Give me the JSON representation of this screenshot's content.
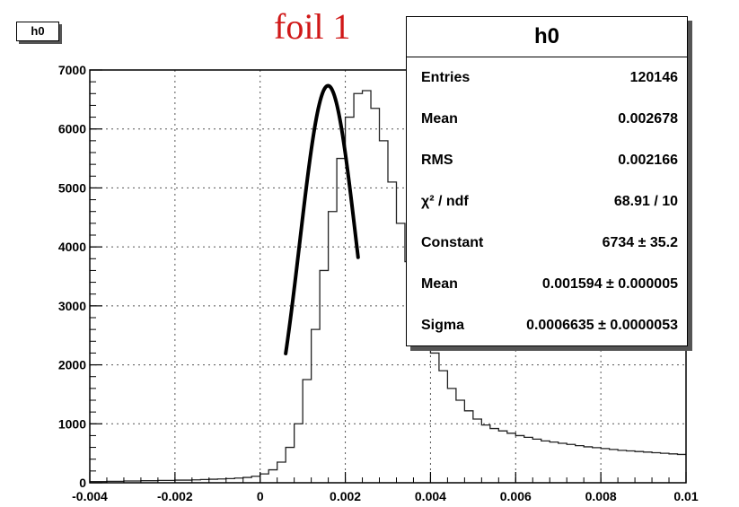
{
  "tag": "h0",
  "title": "foil 1",
  "stats": {
    "title": "h0",
    "rows": [
      {
        "key": "Entries",
        "value": "120146"
      },
      {
        "key": "Mean",
        "value": "0.002678"
      },
      {
        "key": "RMS",
        "value": "0.002166"
      },
      {
        "key": "χ² / ndf",
        "value": "68.91 / 10"
      },
      {
        "key": "Constant",
        "value": "6734 ± 35.2"
      },
      {
        "key": "Mean",
        "value": "0.001594 ± 0.000005"
      },
      {
        "key": "Sigma",
        "value": "0.0006635 ± 0.0000053"
      }
    ]
  },
  "chart_data": {
    "type": "histogram",
    "title": "foil 1",
    "xlabel": "",
    "ylabel": "",
    "xlim": [
      -0.004,
      0.01
    ],
    "ylim": [
      0,
      7000
    ],
    "x_ticks": [
      -0.004,
      -0.002,
      0,
      0.002,
      0.004,
      0.006,
      0.008,
      0.01
    ],
    "x_tick_labels": [
      "-0.004",
      "-0.002",
      "0",
      "0.002",
      "0.004",
      "0.006",
      "0.008",
      "0.01"
    ],
    "y_ticks": [
      0,
      1000,
      2000,
      3000,
      4000,
      5000,
      6000,
      7000
    ],
    "y_tick_labels": [
      "0",
      "1000",
      "2000",
      "3000",
      "4000",
      "5000",
      "6000",
      "7000"
    ],
    "grid": true,
    "bin_width": 0.0002,
    "bin_start": -0.004,
    "counts": [
      20,
      20,
      25,
      25,
      30,
      30,
      35,
      35,
      40,
      40,
      45,
      45,
      50,
      55,
      60,
      65,
      70,
      80,
      90,
      110,
      150,
      220,
      350,
      600,
      1000,
      1750,
      2600,
      3600,
      4600,
      5500,
      6200,
      6600,
      6650,
      6350,
      5800,
      5100,
      4400,
      3750,
      3150,
      2650,
      2200,
      1900,
      1600,
      1400,
      1220,
      1080,
      980,
      920,
      880,
      840,
      800,
      770,
      740,
      710,
      690,
      670,
      650,
      630,
      610,
      595,
      580,
      565,
      550,
      540,
      530,
      520,
      510,
      500,
      490,
      480
    ],
    "fit": {
      "type": "gaus",
      "constant": 6734,
      "mean": 0.001594,
      "sigma": 0.0006635,
      "range": [
        0.0006,
        0.0023
      ],
      "color": "#000000"
    }
  }
}
